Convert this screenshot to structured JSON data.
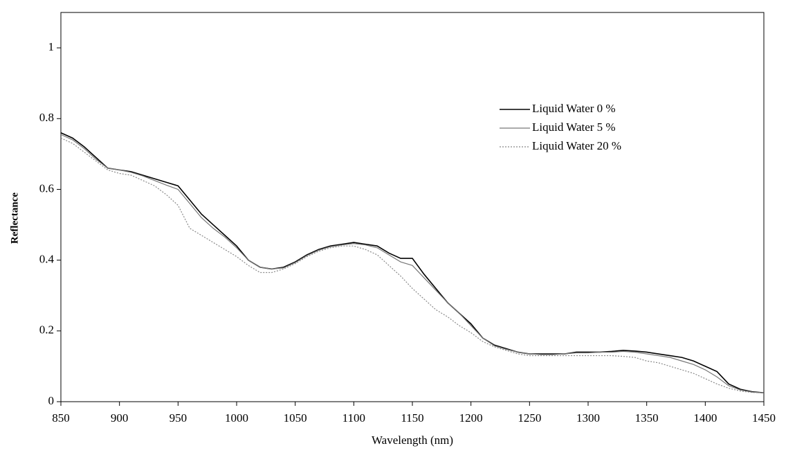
{
  "chart_data": {
    "type": "line",
    "xlabel": "Wavelength (nm)",
    "ylabel": "Reflectance",
    "x": [
      850,
      860,
      870,
      880,
      890,
      900,
      910,
      920,
      930,
      940,
      950,
      960,
      970,
      980,
      990,
      1000,
      1010,
      1020,
      1030,
      1040,
      1050,
      1060,
      1070,
      1080,
      1090,
      1100,
      1110,
      1120,
      1130,
      1140,
      1150,
      1160,
      1170,
      1180,
      1190,
      1200,
      1210,
      1220,
      1230,
      1240,
      1250,
      1260,
      1270,
      1280,
      1290,
      1300,
      1310,
      1320,
      1330,
      1340,
      1350,
      1360,
      1370,
      1380,
      1390,
      1400,
      1410,
      1420,
      1430,
      1440,
      1450
    ],
    "series": [
      {
        "name": "Liquid Water 0 %",
        "color": "#000000",
        "style": "solid",
        "values": [
          0.76,
          0.745,
          0.72,
          0.69,
          0.66,
          0.655,
          0.65,
          0.64,
          0.63,
          0.62,
          0.61,
          0.57,
          0.53,
          0.5,
          0.47,
          0.44,
          0.4,
          0.38,
          0.375,
          0.38,
          0.395,
          0.415,
          0.43,
          0.44,
          0.445,
          0.45,
          0.445,
          0.44,
          0.42,
          0.405,
          0.405,
          0.36,
          0.32,
          0.28,
          0.25,
          0.22,
          0.18,
          0.16,
          0.15,
          0.14,
          0.135,
          0.135,
          0.135,
          0.135,
          0.14,
          0.14,
          0.14,
          0.142,
          0.145,
          0.143,
          0.14,
          0.135,
          0.13,
          0.125,
          0.115,
          0.1,
          0.085,
          0.05,
          0.035,
          0.028,
          0.025
        ]
      },
      {
        "name": "Liquid Water 5 %",
        "color": "#777777",
        "style": "solid",
        "values": [
          0.755,
          0.74,
          0.715,
          0.685,
          0.66,
          0.655,
          0.648,
          0.638,
          0.625,
          0.612,
          0.6,
          0.56,
          0.52,
          0.49,
          0.465,
          0.435,
          0.4,
          0.38,
          0.375,
          0.378,
          0.393,
          0.413,
          0.428,
          0.438,
          0.443,
          0.447,
          0.443,
          0.435,
          0.415,
          0.395,
          0.385,
          0.35,
          0.315,
          0.28,
          0.25,
          0.215,
          0.18,
          0.158,
          0.148,
          0.14,
          0.135,
          0.133,
          0.133,
          0.135,
          0.138,
          0.138,
          0.14,
          0.14,
          0.142,
          0.14,
          0.135,
          0.13,
          0.125,
          0.115,
          0.105,
          0.09,
          0.07,
          0.045,
          0.033,
          0.027,
          0.025
        ]
      },
      {
        "name": "Liquid Water 20 %",
        "color": "#888888",
        "style": "dotted",
        "values": [
          0.745,
          0.73,
          0.705,
          0.68,
          0.655,
          0.645,
          0.64,
          0.625,
          0.61,
          0.585,
          0.555,
          0.49,
          0.47,
          0.45,
          0.43,
          0.41,
          0.385,
          0.365,
          0.365,
          0.375,
          0.39,
          0.41,
          0.425,
          0.435,
          0.44,
          0.44,
          0.43,
          0.415,
          0.385,
          0.355,
          0.32,
          0.29,
          0.26,
          0.24,
          0.215,
          0.195,
          0.17,
          0.155,
          0.145,
          0.135,
          0.13,
          0.13,
          0.13,
          0.13,
          0.13,
          0.13,
          0.13,
          0.13,
          0.128,
          0.125,
          0.115,
          0.11,
          0.1,
          0.09,
          0.08,
          0.065,
          0.05,
          0.038,
          0.03,
          0.026,
          0.025
        ]
      }
    ],
    "xlim": [
      850,
      1450
    ],
    "xticks": [
      850,
      900,
      950,
      1000,
      1050,
      1100,
      1150,
      1200,
      1250,
      1300,
      1350,
      1400,
      1450
    ],
    "ylim": [
      0,
      1.1
    ],
    "yticks": [
      0,
      0.2,
      0.4,
      0.6,
      0.8,
      1
    ]
  }
}
